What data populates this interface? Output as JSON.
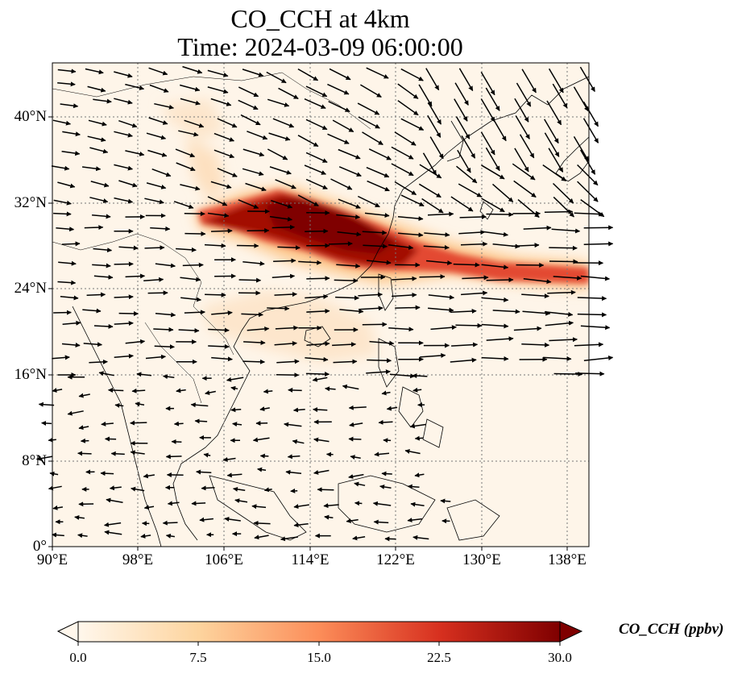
{
  "title": {
    "line1": "CO_CCH at 4km",
    "line2": "Time: 2024-03-09 06:00:00"
  },
  "map": {
    "projection": "PlateCarree",
    "lon_range": [
      90,
      140
    ],
    "lat_range": [
      0,
      45
    ],
    "gridlines": "dotted",
    "lat_ticks": [
      "40°N",
      "32°N",
      "24°N",
      "16°N",
      "8°N",
      "0°"
    ],
    "lon_ticks": [
      "90°E",
      "98°E",
      "106°E",
      "114°E",
      "122°E",
      "130°E",
      "138°E"
    ],
    "field": "CO_CCH concentration at 4 km",
    "plume_region": "maximum over central-eastern China near 26–34°N, extending east across Taiwan to the Pacific",
    "wind_vectors": "westerly flow north of 16°N, weak easterly flow south"
  },
  "colorbar": {
    "label": "CO_CCH (ppbv)",
    "ticks": [
      "0.0",
      "7.5",
      "15.0",
      "22.5",
      "30.0"
    ],
    "range": [
      0,
      30
    ],
    "colormap": "OrRd",
    "colors": [
      "#fff7ec",
      "#fdd49e",
      "#fc8d59",
      "#d7301f",
      "#7f0000"
    ],
    "extend": "both"
  }
}
